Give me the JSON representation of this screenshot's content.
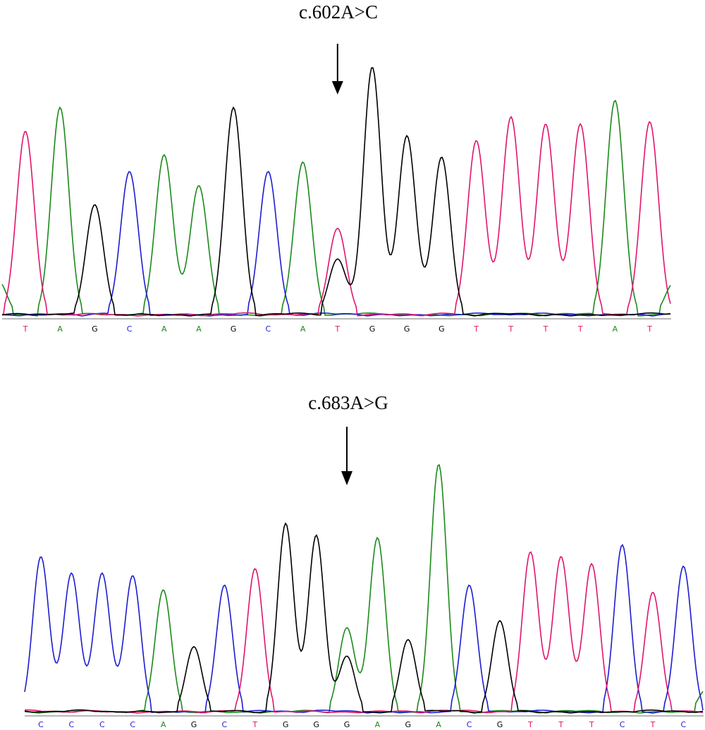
{
  "colors": {
    "A": "#1a8a1a",
    "C": "#1c1cd0",
    "G": "#000000",
    "T": "#e0156c",
    "baseline": "#8a8a8a"
  },
  "chart_data": [
    {
      "type": "chromatogram",
      "title": "c.602A>C",
      "sequence": [
        "T",
        "A",
        "G",
        "C",
        "A",
        "A",
        "G",
        "C",
        "A",
        "T",
        "G",
        "G",
        "G",
        "T",
        "T",
        "T",
        "T",
        "A",
        "T"
      ],
      "intensity": [
        0.78,
        0.88,
        0.47,
        0.61,
        0.68,
        0.55,
        0.88,
        0.61,
        0.65,
        0.37,
        1.05,
        0.76,
        0.67,
        0.74,
        0.84,
        0.81,
        0.81,
        0.91,
        0.82
      ],
      "secondary_peaks": [
        {
          "position": 9,
          "base": "G",
          "intensity": 0.24
        }
      ],
      "left_tail": {
        "base": "A",
        "intensity": 0.15
      },
      "right_tail": {
        "base": "A",
        "intensity": 0.14
      },
      "arrow_position": 9
    },
    {
      "type": "chromatogram",
      "title": "c.683A>G",
      "sequence": [
        "C",
        "C",
        "C",
        "C",
        "A",
        "G",
        "C",
        "T",
        "G",
        "G",
        "G",
        "A",
        "G",
        "A",
        "C",
        "G",
        "T",
        "T",
        "T",
        "C",
        "T",
        "C"
      ],
      "intensity": [
        0.66,
        0.59,
        0.59,
        0.58,
        0.52,
        0.28,
        0.54,
        0.61,
        0.8,
        0.75,
        0.24,
        0.74,
        0.31,
        1.05,
        0.54,
        0.39,
        0.68,
        0.66,
        0.63,
        0.71,
        0.51,
        0.62
      ],
      "secondary_peaks": [
        {
          "position": 10,
          "base": "A",
          "intensity": 0.36
        }
      ],
      "left_tail": null,
      "right_tail": {
        "base": "A",
        "intensity": 0.1
      },
      "arrow_position": 10
    }
  ]
}
